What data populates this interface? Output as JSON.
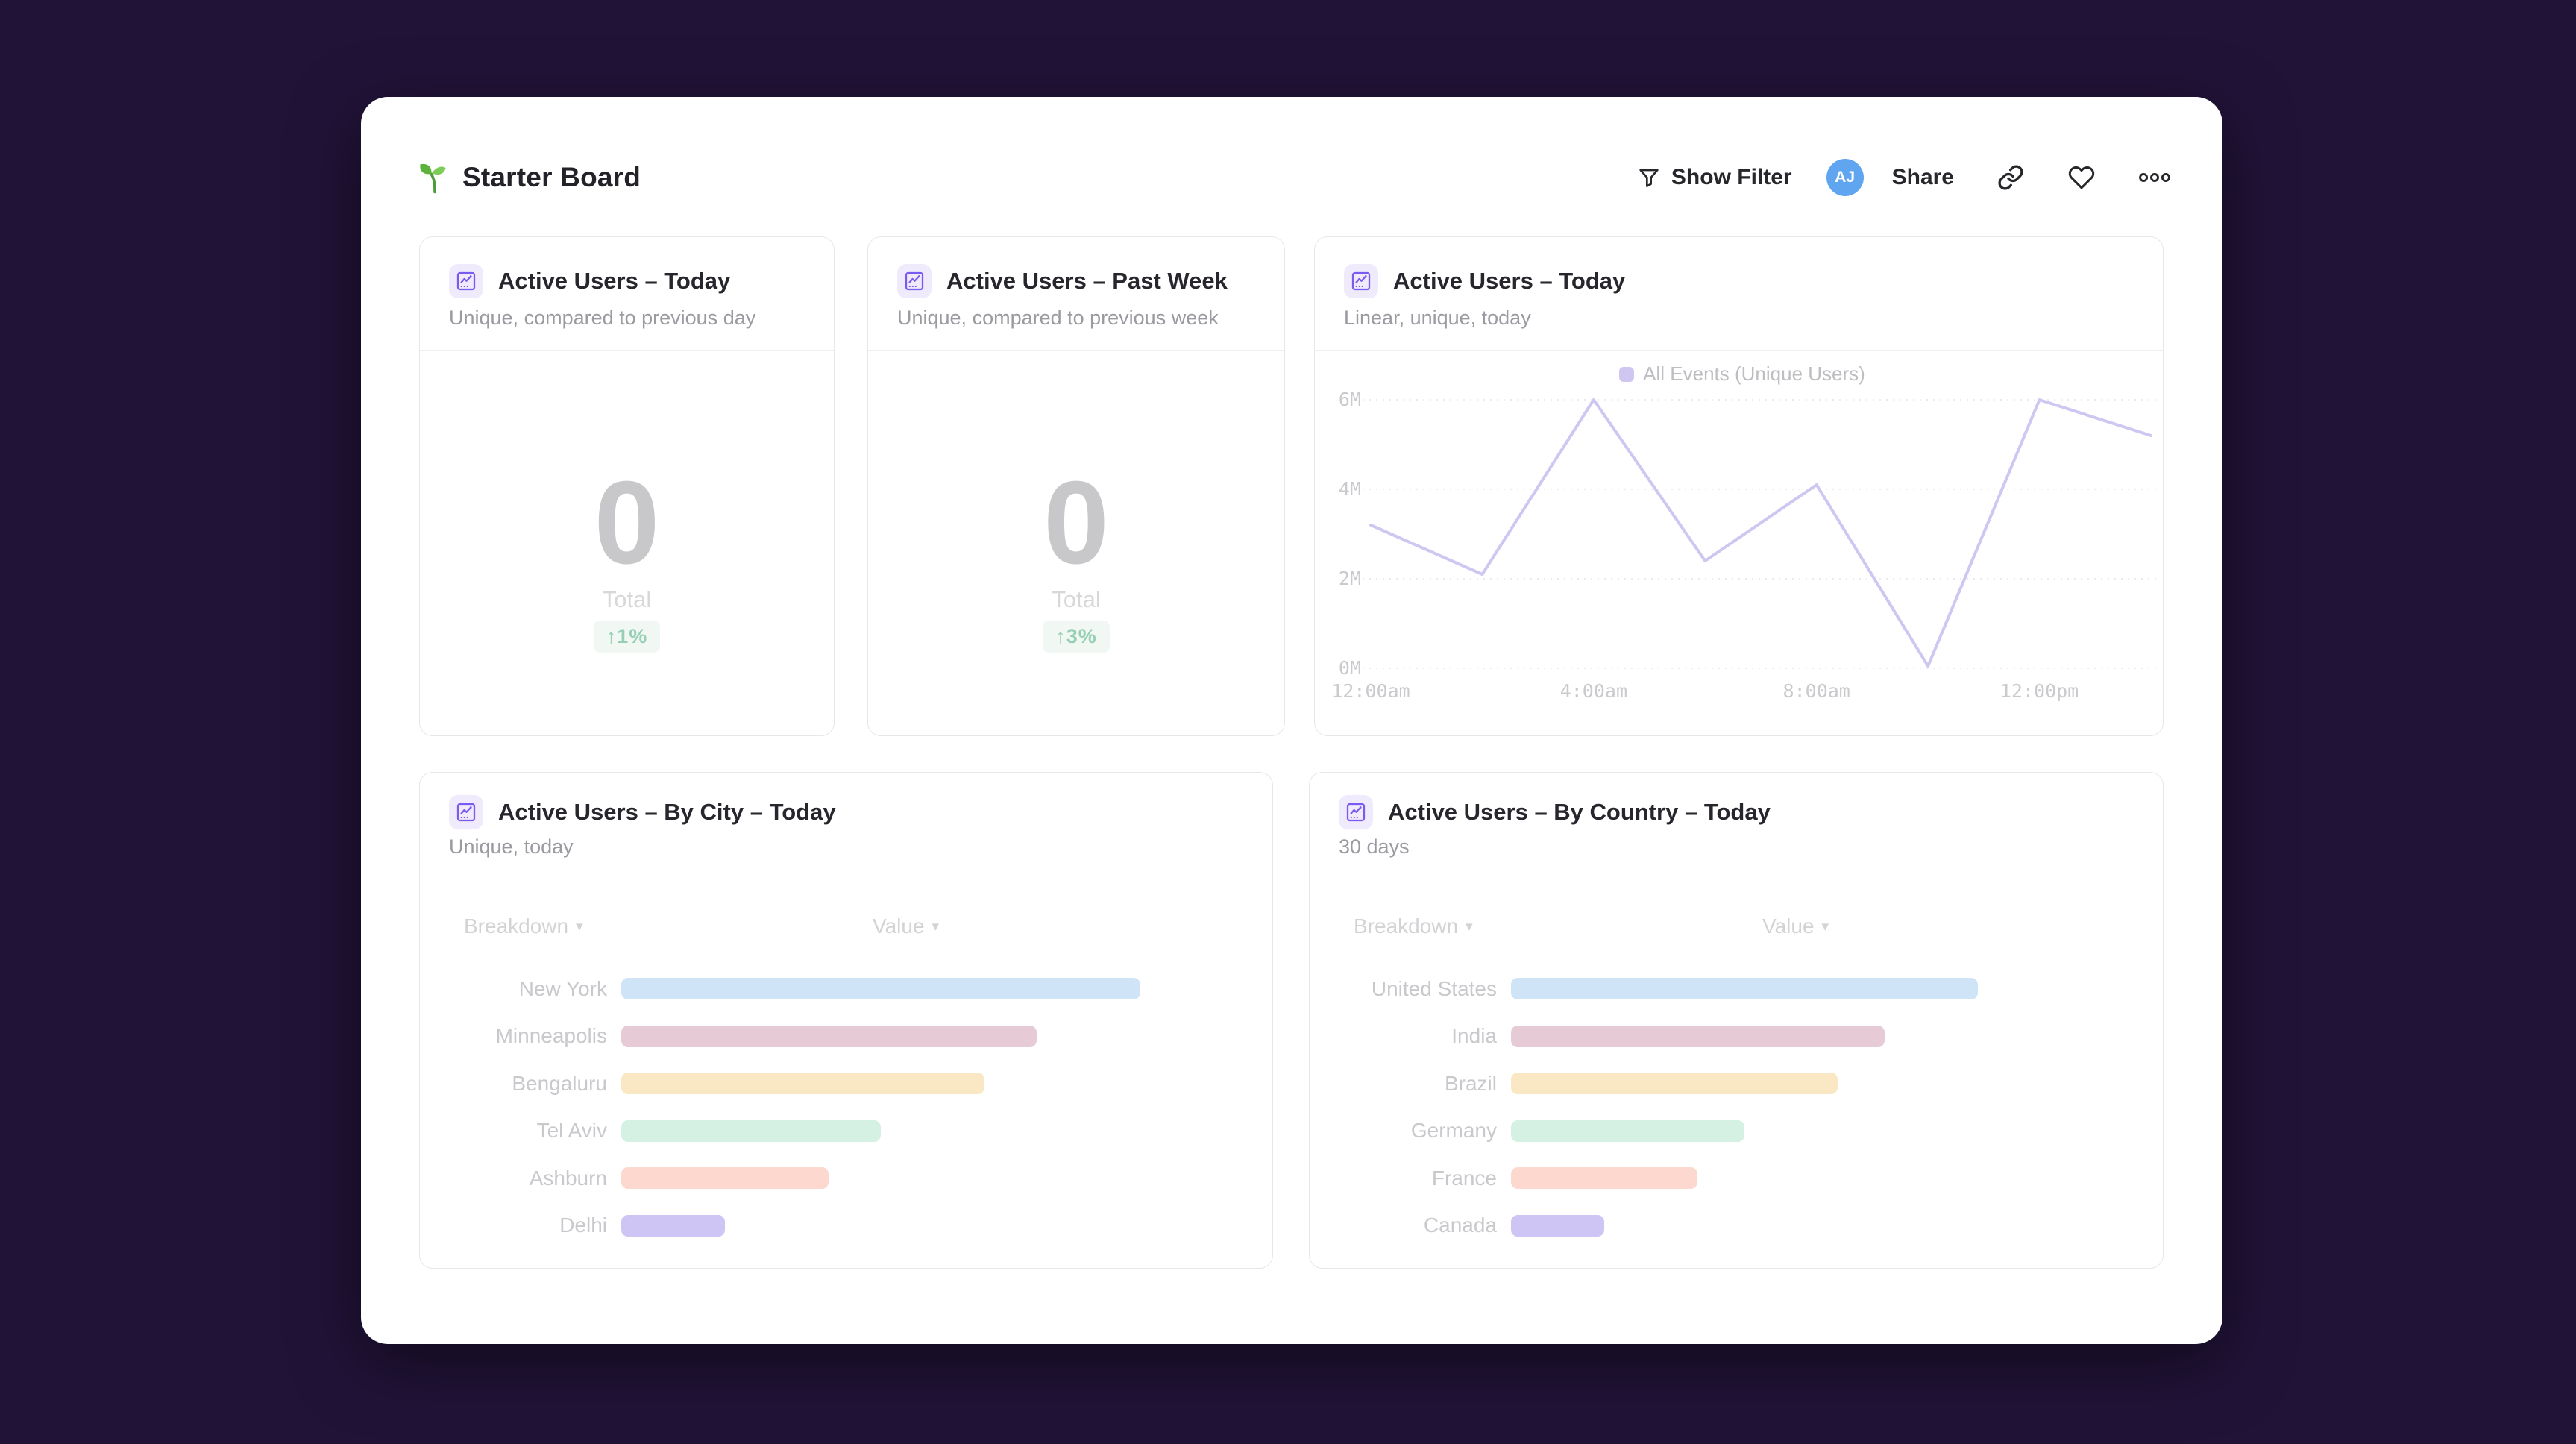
{
  "header": {
    "title": "Starter Board",
    "filter_label": "Show Filter",
    "avatar_initials": "AJ",
    "share_label": "Share"
  },
  "cards": {
    "active_today": {
      "title": "Active Users – Today",
      "subtitle": "Unique, compared to previous day",
      "value": "0",
      "value_label": "Total",
      "change": "↑1%"
    },
    "active_past_week": {
      "title": "Active Users – Past Week",
      "subtitle": "Unique, compared to previous week",
      "value": "0",
      "value_label": "Total",
      "change": "↑3%"
    },
    "active_today_chart": {
      "title": "Active Users – Today",
      "subtitle": "Linear, unique, today"
    },
    "by_city": {
      "title": "Active Users – By City – Today",
      "subtitle": "Unique, today"
    },
    "by_country": {
      "title": "Active Users – By Country – Today",
      "subtitle": "30 days"
    }
  },
  "colors": {
    "page_background": "#211338",
    "accent_purple": "#7A5AF0",
    "avatar_blue": "#5FA5EF",
    "positive_green": "#96CFB4",
    "line_lavender": "#CFC7F1"
  },
  "chart_data": [
    {
      "type": "line",
      "title": "Active Users – Today",
      "subtitle": "Linear, unique, today",
      "legend_position": "top",
      "grid": true,
      "xlim_hours": [
        0,
        14
      ],
      "ylim_millions": [
        0,
        6.3
      ],
      "xticks": [
        {
          "label": "12:00am",
          "hour": 0
        },
        {
          "label": "4:00am",
          "hour": 4
        },
        {
          "label": "8:00am",
          "hour": 8
        },
        {
          "label": "12:00pm",
          "hour": 12
        }
      ],
      "yticks": [
        {
          "label": "0M",
          "value": 0
        },
        {
          "label": "2M",
          "value": 2
        },
        {
          "label": "4M",
          "value": 4
        },
        {
          "label": "6M",
          "value": 6
        }
      ],
      "series": [
        {
          "name": "All Events (Unique Users)",
          "color": "#cfc7f1",
          "x_hours": [
            0,
            2,
            4,
            6,
            8,
            10,
            12,
            14
          ],
          "values_millions": [
            3.2,
            2.1,
            6.0,
            2.4,
            4.1,
            0.05,
            6.0,
            5.2
          ]
        }
      ]
    },
    {
      "type": "bar",
      "orientation": "horizontal",
      "title": "Active Users – By City – Today",
      "subtitle": "Unique, today",
      "column_headers": [
        "Breakdown",
        "Value"
      ],
      "categories": [
        "New York",
        "Minneapolis",
        "Bengaluru",
        "Tel Aviv",
        "Ashburn",
        "Delhi"
      ],
      "values_relative_pct": [
        100,
        80,
        70,
        50,
        40,
        20
      ],
      "value_labels_shown": false,
      "bar_colors": [
        "#cfe5f7",
        "#e6cbd6",
        "#fae7c3",
        "#d5f1e3",
        "#fcd8cf",
        "#cec5f4"
      ]
    },
    {
      "type": "bar",
      "orientation": "horizontal",
      "title": "Active Users – By Country – Today",
      "subtitle": "30 days",
      "column_headers": [
        "Breakdown",
        "Value"
      ],
      "categories": [
        "United States",
        "India",
        "Brazil",
        "Germany",
        "France",
        "Canada"
      ],
      "values_relative_pct": [
        100,
        80,
        70,
        50,
        40,
        20
      ],
      "value_labels_shown": false,
      "bar_colors": [
        "#cfe5f7",
        "#e6cbd6",
        "#fae7c3",
        "#d5f1e3",
        "#fcd8cf",
        "#cec5f4"
      ]
    }
  ]
}
